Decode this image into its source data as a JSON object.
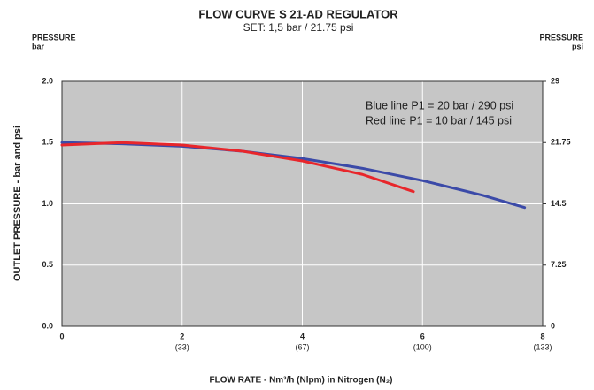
{
  "chart_data": {
    "type": "line",
    "title": "FLOW CURVE S 21-AD REGULATOR",
    "subtitle": "SET: 1,5 bar / 21.75 psi",
    "y_unit_left": [
      "PRESSURE",
      "bar"
    ],
    "y_unit_right": [
      "PRESSURE",
      "psi"
    ],
    "ylabel": "OUTLET PRESSURE - bar and psi",
    "xlabel": "FLOW RATE - Nm³/h (Nlpm) in Nitrogen (N₂)",
    "xlim": [
      0,
      8
    ],
    "xticks": [
      0,
      2,
      4,
      6,
      8
    ],
    "x2tick_labels": [
      {
        "value": 2,
        "label": "(33)"
      },
      {
        "value": 4,
        "label": "(67)"
      },
      {
        "value": 6,
        "label": "(100)"
      },
      {
        "value": 8,
        "label": "(133)"
      }
    ],
    "ylim": [
      0,
      2
    ],
    "yticks": [
      {
        "value": 0,
        "label": "0.0"
      },
      {
        "value": 0.5,
        "label": "0.5"
      },
      {
        "value": 1,
        "label": "1.0"
      },
      {
        "value": 1.5,
        "label": "1.5"
      },
      {
        "value": 2,
        "label": "2.0"
      }
    ],
    "y2lim": [
      0,
      29
    ],
    "y2ticks": [
      0,
      7.25,
      14.5,
      21.75,
      29
    ],
    "grid": true,
    "series": [
      {
        "name": "Blue line P1 = 20 bar / 290 psi",
        "color": "#3b4aa8",
        "x": [
          0,
          1,
          2,
          3,
          4,
          5,
          6,
          7,
          7.7
        ],
        "values": [
          1.5,
          1.49,
          1.47,
          1.43,
          1.37,
          1.29,
          1.19,
          1.07,
          0.97
        ]
      },
      {
        "name": "Red line P1 = 10 bar / 145 psi",
        "color": "#e8262b",
        "x": [
          0,
          1,
          2,
          3,
          4,
          5,
          5.85
        ],
        "values": [
          1.48,
          1.5,
          1.48,
          1.43,
          1.35,
          1.24,
          1.1
        ]
      }
    ]
  }
}
